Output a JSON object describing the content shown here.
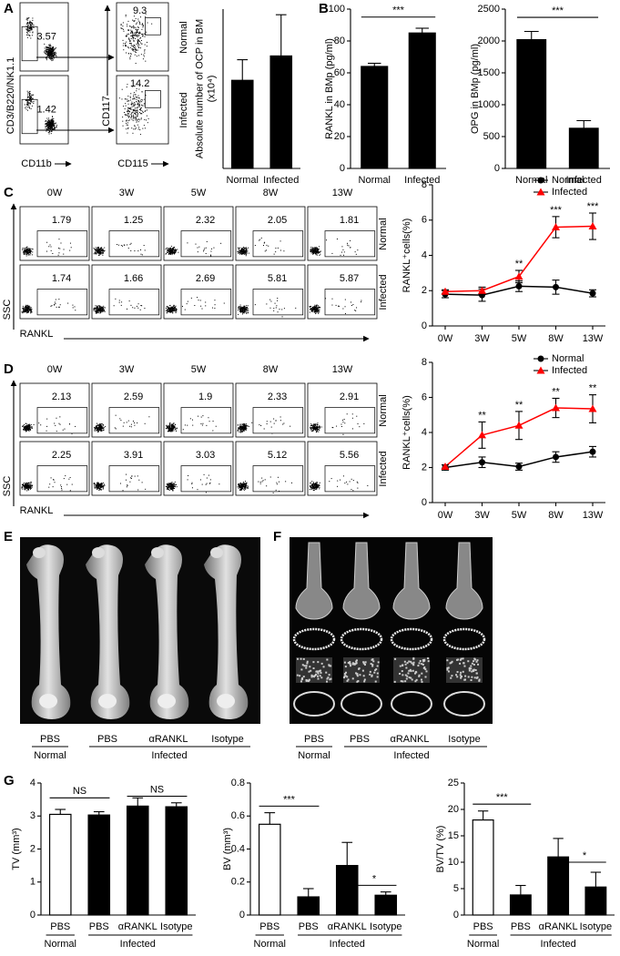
{
  "panel_labels": [
    "A",
    "B",
    "C",
    "D",
    "E",
    "F",
    "G"
  ],
  "panel_a": {
    "y_axis_label": "CD3/B220/NK1.1",
    "x_axis_label": "CD11b",
    "gate_percentages": [
      3.57,
      1.42
    ],
    "y_axis_label_2": "CD117",
    "x_axis_label_2": "CD115",
    "subgate_percentages": [
      9.3,
      14.2
    ],
    "row_labels": [
      "Normal",
      "Infected"
    ]
  },
  "flow_c": {
    "columns": [
      "0W",
      "3W",
      "5W",
      "8W",
      "13W"
    ],
    "y_axis_label": "SSC",
    "x_axis_label": "RANKL",
    "rows": [
      {
        "label": "Normal",
        "values": [
          1.79,
          1.25,
          2.32,
          2.05,
          1.81
        ]
      },
      {
        "label": "Infected",
        "values": [
          1.74,
          1.66,
          2.69,
          5.81,
          5.87
        ]
      }
    ]
  },
  "flow_d": {
    "columns": [
      "0W",
      "3W",
      "5W",
      "8W",
      "13W"
    ],
    "y_axis_label": "SSC",
    "x_axis_label": "RANKL",
    "rows": [
      {
        "label": "Normal",
        "values": [
          2.13,
          2.59,
          1.9,
          2.33,
          2.91
        ]
      },
      {
        "label": "Infected",
        "values": [
          2.25,
          3.91,
          3.03,
          5.12,
          5.56
        ]
      }
    ]
  },
  "panel_e": {
    "labels": [
      "PBS",
      "PBS",
      "αRANKL",
      "Isotype"
    ],
    "groups": [
      "Normal",
      "Infected"
    ]
  },
  "panel_f": {
    "labels": [
      "PBS",
      "PBS",
      "αRANKL",
      "Isotype"
    ],
    "groups": [
      "Normal",
      "Infected"
    ]
  },
  "chart_data": [
    {
      "type": "bar",
      "y_label": [
        "Absolute number of OCP in BM",
        "(x10⁴)"
      ],
      "categories": [
        "Normal",
        "Infected"
      ],
      "values": [
        4.7,
        6.0
      ],
      "errors": [
        1.1,
        2.2
      ],
      "colors": [
        "#000000",
        "#000000"
      ],
      "ylim": [
        0,
        8.5
      ]
    },
    {
      "type": "bar",
      "y_label": [
        "RANKL in BMp (pg/ml)"
      ],
      "categories": [
        "Normal",
        "Infected"
      ],
      "values": [
        64,
        85
      ],
      "errors": [
        2,
        3
      ],
      "colors": [
        "#000000",
        "#000000"
      ],
      "ylim": [
        0,
        100
      ],
      "yticks": [
        0,
        20,
        40,
        60,
        80,
        100
      ],
      "significance": [
        "***"
      ]
    },
    {
      "type": "bar",
      "y_label": [
        "OPG in BMp (pg/ml)"
      ],
      "categories": [
        "Normal",
        "Infected"
      ],
      "values": [
        2020,
        630
      ],
      "errors": [
        130,
        120
      ],
      "colors": [
        "#000000",
        "#000000"
      ],
      "ylim": [
        0,
        2500
      ],
      "yticks": [
        0,
        500,
        1000,
        1500,
        2000,
        2500
      ],
      "significance": [
        "***"
      ]
    },
    {
      "type": "line",
      "y_label": "RANKL⁺cells(%)",
      "categories": [
        "0W",
        "3W",
        "5W",
        "8W",
        "13W"
      ],
      "series": [
        {
          "name": "Normal",
          "color": "#000000",
          "marker": "circle",
          "values": [
            1.8,
            1.75,
            2.25,
            2.2,
            1.85
          ],
          "errors": [
            0.2,
            0.35,
            0.3,
            0.4,
            0.2
          ]
        },
        {
          "name": "Infected",
          "color": "#ff0000",
          "marker": "triangle",
          "values": [
            1.95,
            2.0,
            2.8,
            5.6,
            5.65
          ],
          "errors": [
            0.1,
            0.2,
            0.35,
            0.6,
            0.75
          ]
        }
      ],
      "annotations": [
        null,
        null,
        "**",
        "***",
        "***"
      ],
      "ylim": [
        0,
        8
      ],
      "yticks": [
        0,
        2,
        4,
        6,
        8
      ],
      "legend": "top-right"
    },
    {
      "type": "line",
      "y_label": "RANKL⁺cells(%)",
      "categories": [
        "0W",
        "3W",
        "5W",
        "8W",
        "13W"
      ],
      "series": [
        {
          "name": "Normal",
          "color": "#000000",
          "marker": "circle",
          "values": [
            2.0,
            2.3,
            2.05,
            2.6,
            2.9
          ],
          "errors": [
            0.15,
            0.3,
            0.2,
            0.3,
            0.3
          ]
        },
        {
          "name": "Infected",
          "color": "#ff0000",
          "marker": "triangle",
          "values": [
            2.05,
            3.85,
            4.4,
            5.4,
            5.35
          ],
          "errors": [
            0.1,
            0.75,
            0.8,
            0.55,
            0.8
          ]
        }
      ],
      "annotations": [
        null,
        "**",
        "**",
        "**",
        "**"
      ],
      "ylim": [
        0,
        8
      ],
      "yticks": [
        0,
        2,
        4,
        6,
        8
      ],
      "legend": "top-right"
    },
    {
      "type": "bar",
      "y_label": [
        "TV (mm³)"
      ],
      "categories": [
        "PBS",
        "PBS",
        "αRANKL",
        "Isotype"
      ],
      "group_labels": [
        "Normal",
        "Infected"
      ],
      "values": [
        3.05,
        3.03,
        3.3,
        3.28
      ],
      "errors": [
        0.15,
        0.1,
        0.25,
        0.12
      ],
      "colors": [
        "#ffffff",
        "#000000",
        "#000000",
        "#000000"
      ],
      "ylim": [
        0,
        4
      ],
      "yticks": [
        0,
        1,
        2,
        3,
        4
      ],
      "significance": [
        "NS",
        "NS"
      ]
    },
    {
      "type": "bar",
      "y_label": [
        "BV (mm³)"
      ],
      "categories": [
        "PBS",
        "PBS",
        "αRANKL",
        "Isotype"
      ],
      "group_labels": [
        "Normal",
        "Infected"
      ],
      "values": [
        0.55,
        0.11,
        0.3,
        0.12
      ],
      "errors": [
        0.07,
        0.05,
        0.14,
        0.02
      ],
      "colors": [
        "#ffffff",
        "#000000",
        "#000000",
        "#000000"
      ],
      "ylim": [
        0,
        0.8
      ],
      "yticks": [
        0,
        0.2,
        0.4,
        0.6,
        0.8
      ],
      "significance": [
        "***",
        "*"
      ]
    },
    {
      "type": "bar",
      "y_label": [
        "BV/TV (%)"
      ],
      "categories": [
        "PBS",
        "PBS",
        "αRANKL",
        "Isotype"
      ],
      "group_labels": [
        "Normal",
        "Infected"
      ],
      "values": [
        18,
        3.8,
        11,
        5.3
      ],
      "errors": [
        1.7,
        1.8,
        3.5,
        2.8
      ],
      "colors": [
        "#ffffff",
        "#000000",
        "#000000",
        "#000000"
      ],
      "ylim": [
        0,
        25
      ],
      "yticks": [
        0,
        5,
        10,
        15,
        20,
        25
      ],
      "significance": [
        "***",
        "*"
      ]
    }
  ]
}
